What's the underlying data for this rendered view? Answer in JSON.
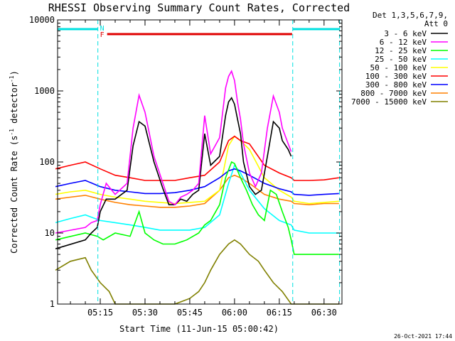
{
  "chart_data": {
    "type": "line",
    "title": "RHESSI Observing Summary Count Rates, Corrected",
    "xlabel": "Start Time (11-Jun-15 05:00:42)",
    "ylabel_main": "Corrected Count Rate (s",
    "ylabel_sup": "-1",
    "ylabel_tail": " detector",
    "ylabel_sup2": "-1",
    "ylabel_close": ")",
    "y_scale": "log",
    "ylim": [
      1,
      10000
    ],
    "xlim_minutes": [
      0.7,
      96
    ],
    "y_ticks": [
      "1",
      "10",
      "100",
      "1000",
      "10000"
    ],
    "x_ticks": [
      {
        "label": "05:15",
        "min": 15
      },
      {
        "label": "05:30",
        "min": 30
      },
      {
        "label": "05:45",
        "min": 45
      },
      {
        "label": "06:00",
        "min": 60
      },
      {
        "label": "06:15",
        "min": 75
      },
      {
        "label": "06:30",
        "min": 90
      }
    ],
    "legend_header": [
      "Det 1,3,5,6,7,9,",
      "Att 0"
    ],
    "legend_position": "right",
    "flags": {
      "night_label": "N",
      "flare_label": "F",
      "night_color": "#00e0e0",
      "flare_color": "#e00000",
      "night_intervals_min": [
        [
          0.7,
          14.2
        ],
        [
          79.5,
          95.2
        ]
      ],
      "flare_interval_min": [
        17.3,
        79.3
      ],
      "attenuator_dashes_min": [
        14.2,
        79.5,
        95.2
      ]
    },
    "series": [
      {
        "name": "3 - 6 keV",
        "color": "#000000",
        "x": [
          0,
          10,
          12,
          14,
          15,
          17,
          20,
          24,
          26,
          28,
          30,
          33,
          36,
          38,
          40,
          42,
          44,
          46,
          48,
          50,
          52,
          55,
          57,
          58,
          59,
          60,
          61,
          62,
          63,
          65,
          67,
          69,
          71,
          73,
          75,
          76,
          78,
          79
        ],
        "y": [
          6,
          8,
          10,
          12,
          20,
          30,
          30,
          40,
          170,
          370,
          320,
          100,
          42,
          25,
          25,
          30,
          28,
          35,
          40,
          250,
          90,
          120,
          450,
          700,
          800,
          650,
          400,
          250,
          100,
          45,
          35,
          40,
          120,
          370,
          300,
          200,
          150,
          120
        ]
      },
      {
        "name": "6 - 12 keV",
        "color": "#ff00ff",
        "x": [
          0,
          10,
          12,
          14,
          15,
          17,
          20,
          24,
          26,
          28,
          30,
          33,
          36,
          38,
          40,
          42,
          44,
          46,
          48,
          50,
          52,
          55,
          57,
          58,
          59,
          60,
          61,
          62,
          63,
          65,
          67,
          69,
          71,
          73,
          75,
          76,
          78,
          79
        ],
        "y": [
          10,
          12,
          14,
          15,
          25,
          50,
          35,
          50,
          300,
          870,
          500,
          120,
          50,
          28,
          25,
          32,
          35,
          40,
          50,
          450,
          130,
          220,
          1100,
          1600,
          1900,
          1400,
          700,
          400,
          180,
          70,
          45,
          70,
          300,
          850,
          500,
          300,
          180,
          140
        ]
      },
      {
        "name": "12 - 25 keV",
        "color": "#00ff00",
        "x": [
          0,
          10,
          14,
          16,
          20,
          25,
          28,
          30,
          33,
          36,
          40,
          44,
          48,
          50,
          52,
          55,
          57,
          59,
          60,
          62,
          64,
          66,
          68,
          70,
          72,
          74,
          76,
          78,
          79,
          80,
          88,
          95
        ],
        "y": [
          8,
          10,
          9,
          8,
          10,
          9,
          20,
          10,
          8,
          7,
          7,
          8,
          10,
          13,
          15,
          25,
          60,
          100,
          95,
          60,
          40,
          25,
          18,
          15,
          40,
          35,
          20,
          12,
          8,
          5,
          5,
          5
        ]
      },
      {
        "name": "25 - 50 keV",
        "color": "#00ffff",
        "x": [
          0,
          5,
          10,
          15,
          20,
          25,
          30,
          35,
          40,
          45,
          50,
          55,
          58,
          60,
          62,
          65,
          70,
          75,
          79,
          80,
          85,
          90,
          95
        ],
        "y": [
          14,
          16,
          18,
          15,
          14,
          13,
          12,
          11,
          11,
          11,
          12,
          18,
          50,
          90,
          70,
          40,
          22,
          15,
          13,
          11,
          10,
          10,
          10
        ]
      },
      {
        "name": "50 - 100 keV",
        "color": "#ffff00",
        "x": [
          0,
          5,
          10,
          15,
          20,
          25,
          30,
          35,
          40,
          45,
          50,
          55,
          58,
          60,
          62,
          65,
          70,
          75,
          79,
          80,
          85,
          90,
          95
        ],
        "y": [
          35,
          38,
          40,
          35,
          32,
          30,
          28,
          27,
          26,
          27,
          28,
          40,
          170,
          230,
          200,
          150,
          60,
          40,
          32,
          28,
          26,
          27,
          28
        ]
      },
      {
        "name": "100 - 300 keV",
        "color": "#ff0000",
        "x": [
          0,
          5,
          10,
          15,
          20,
          25,
          30,
          35,
          40,
          45,
          50,
          55,
          58,
          60,
          62,
          65,
          70,
          75,
          79,
          80,
          85,
          90,
          95
        ],
        "y": [
          80,
          90,
          100,
          80,
          65,
          60,
          55,
          55,
          55,
          60,
          65,
          100,
          200,
          230,
          200,
          180,
          90,
          70,
          60,
          55,
          55,
          56,
          60
        ]
      },
      {
        "name": "300 - 800 keV",
        "color": "#0000ff",
        "x": [
          0,
          5,
          10,
          15,
          20,
          25,
          30,
          35,
          40,
          45,
          50,
          55,
          58,
          60,
          62,
          65,
          70,
          75,
          79,
          80,
          85,
          90,
          95
        ],
        "y": [
          45,
          50,
          55,
          45,
          40,
          38,
          36,
          36,
          37,
          40,
          45,
          60,
          75,
          80,
          75,
          65,
          50,
          42,
          38,
          35,
          34,
          35,
          36
        ]
      },
      {
        "name": "800 - 7000 keV",
        "color": "#ff8000",
        "x": [
          0,
          5,
          10,
          15,
          20,
          25,
          30,
          35,
          40,
          45,
          50,
          55,
          58,
          60,
          62,
          65,
          70,
          75,
          79,
          80,
          85,
          90,
          95
        ],
        "y": [
          30,
          32,
          34,
          30,
          27,
          25,
          24,
          23,
          23,
          24,
          26,
          40,
          60,
          65,
          60,
          50,
          35,
          30,
          28,
          26,
          25,
          26,
          26
        ]
      },
      {
        "name": "7000 - 15000 keV",
        "color": "#808000",
        "x": [
          0,
          5,
          10,
          12,
          15,
          18,
          20,
          25,
          30,
          35,
          40,
          45,
          48,
          50,
          52,
          55,
          58,
          60,
          62,
          65,
          68,
          70,
          73,
          76,
          79,
          80,
          85,
          90,
          95
        ],
        "y": [
          3,
          4,
          4.5,
          3,
          2,
          1.5,
          1,
          1,
          1,
          1,
          1,
          1.2,
          1.5,
          2,
          3,
          5,
          7,
          8,
          7,
          5,
          4,
          3,
          2,
          1.5,
          1,
          1,
          1,
          1,
          1
        ]
      }
    ]
  },
  "footer": {
    "stamp": "26-Oct-2021 17:44"
  }
}
